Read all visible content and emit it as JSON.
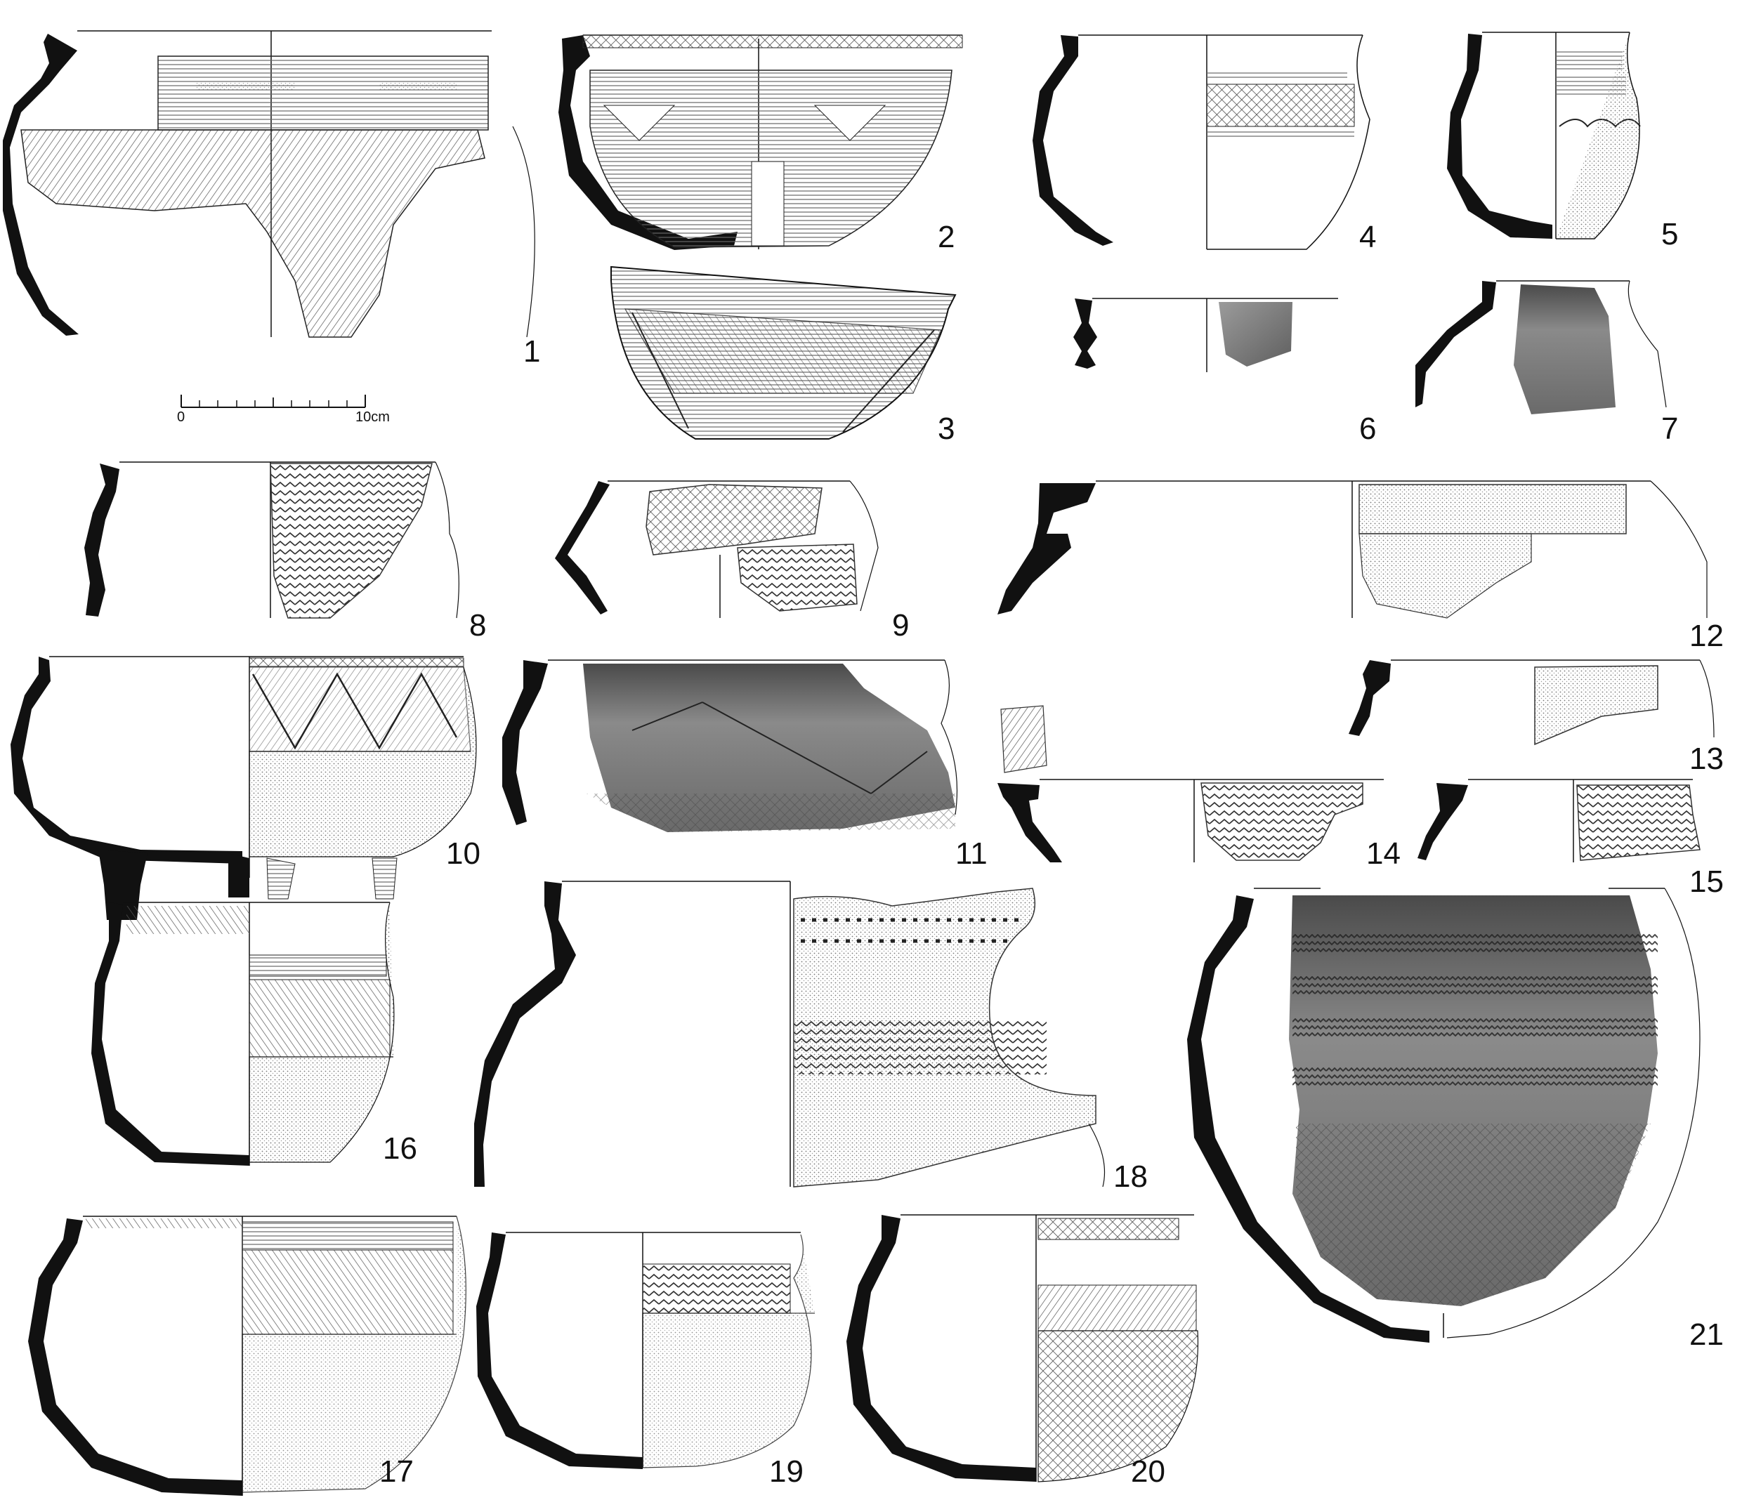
{
  "figure": {
    "scale_bar": {
      "start_label": "0",
      "end_label": "10cm"
    },
    "vessels": [
      {
        "id": "1"
      },
      {
        "id": "2"
      },
      {
        "id": "3"
      },
      {
        "id": "4"
      },
      {
        "id": "5"
      },
      {
        "id": "6"
      },
      {
        "id": "7"
      },
      {
        "id": "8"
      },
      {
        "id": "9"
      },
      {
        "id": "10"
      },
      {
        "id": "11"
      },
      {
        "id": "12"
      },
      {
        "id": "13"
      },
      {
        "id": "14"
      },
      {
        "id": "15"
      },
      {
        "id": "16"
      },
      {
        "id": "17"
      },
      {
        "id": "18"
      },
      {
        "id": "19"
      },
      {
        "id": "20"
      },
      {
        "id": "21"
      }
    ]
  },
  "colors": {
    "ink": "#111111",
    "photo_dark": "#5a5a5a",
    "photo_light": "#9a9a9a",
    "stipple": "#cfcfcf"
  }
}
